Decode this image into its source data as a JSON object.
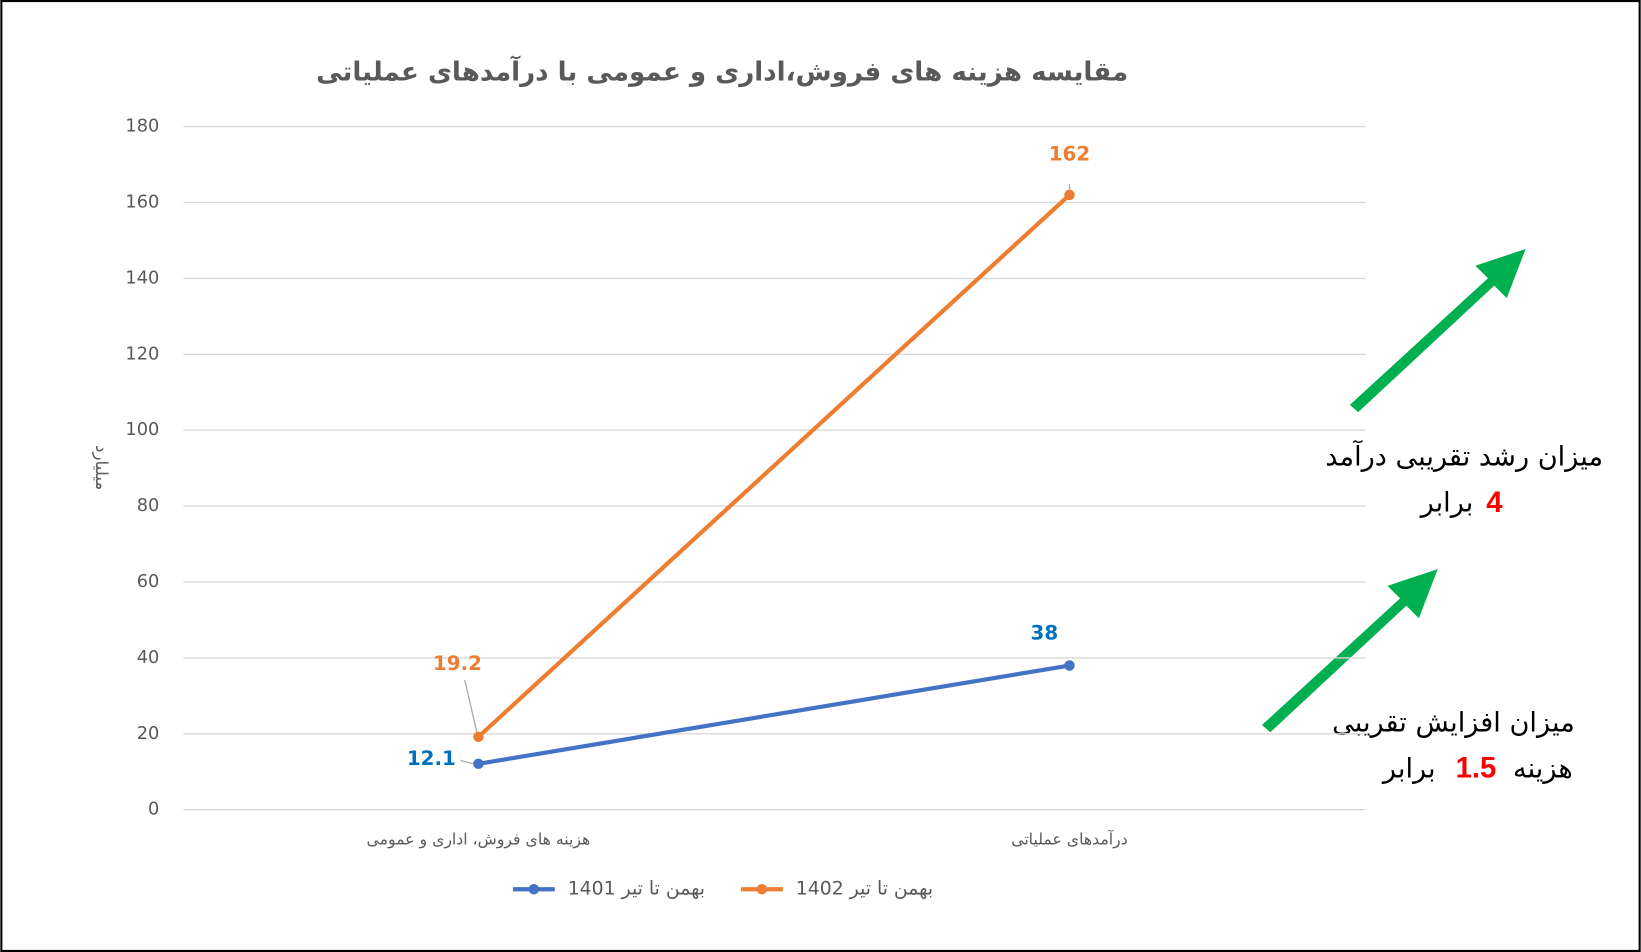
{
  "chart_data": {
    "type": "line",
    "title": "مقایسه هزینه های فروش،اداری و عمومی با درآمدهای عملیاتی",
    "y_label": "میلیارد",
    "categories": [
      "هزینه های فروش، اداری و عمومی",
      "درآمدهای عملیاتی"
    ],
    "series": [
      {
        "name": "بهمن تا تیر 1401",
        "color": "#4472c4",
        "label_color": "#0070c0",
        "values": [
          12.1,
          38
        ]
      },
      {
        "name": "بهمن تا تیر 1402",
        "color": "#ed7d31",
        "label_color": "#ed7d31",
        "values": [
          19.2,
          162
        ]
      }
    ],
    "ylim": [
      0,
      180
    ],
    "yticks": [
      0,
      20,
      40,
      60,
      80,
      100,
      120,
      140,
      160,
      180
    ],
    "grid": true,
    "legend": "bottom",
    "annotations": [
      {
        "text": "میزان رشد تقریبی درآمد",
        "factor": 4,
        "unit": "برابر"
      },
      {
        "text": "میزان افزایش تقریبی",
        "prefix": "هزینه",
        "factor": 1.5,
        "unit": "برابر"
      }
    ]
  }
}
